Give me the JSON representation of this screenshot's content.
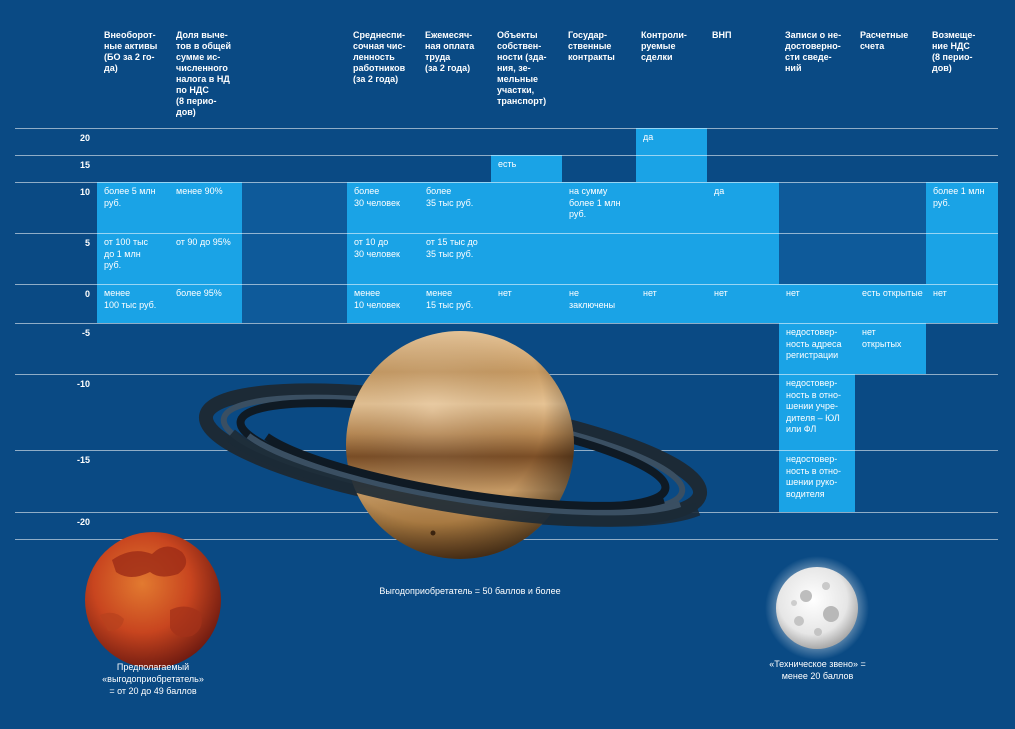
{
  "columns": [
    {
      "id": "bo",
      "label": "Внеоборот-\nные активы\n(БО за 2 го-\nда)"
    },
    {
      "id": "nds_share",
      "label": "Доля выче-\nтов в общей\nсумме ис-\nчисленного\nналога в НД\nпо НДС\n(8 перио-\nдов)"
    },
    {
      "id": "staff",
      "label": "Среднеспи-\nсочная чис-\nленность\nработников\n(за 2 года)"
    },
    {
      "id": "salary",
      "label": "Ежемесяч-\nная оплата\nтруда\n(за 2 года)"
    },
    {
      "id": "property",
      "label": "Объекты\nсобствен-\nности (зда-\nния, зе-\nмельные\nучастки,\nтранспорт)"
    },
    {
      "id": "contracts",
      "label": "Государ-\nственные\nконтракты"
    },
    {
      "id": "controlled",
      "label": "Контроли-\nруемые\nсделки"
    },
    {
      "id": "vnp",
      "label": "ВНП"
    },
    {
      "id": "records",
      "label": "Записи о не-\nдостоверно-\nсти сведе-\nний"
    },
    {
      "id": "accounts",
      "label": "Расчетные\nсчета"
    },
    {
      "id": "refund",
      "label": "Возмеще-\nние НДС\n(8 перио-\nдов)"
    }
  ],
  "scores": [
    "20",
    "15",
    "10",
    "5",
    "0",
    "-5",
    "-10",
    "-15",
    "-20"
  ],
  "cells": {
    "controlled_20": "да",
    "property_15": "есть",
    "bo_10": "более 5 млн\nруб.",
    "nds_10": "менее 90%",
    "staff_10": "более\n30 человек",
    "salary_10": "более\n35 тыс руб.",
    "contracts_10": "на сумму\nболее 1 млн\nруб.",
    "vnp_10": "да",
    "refund_10": "более 1 млн\nруб.",
    "bo_5": "от 100 тыс\nдо 1 млн\nруб.",
    "nds_5": "от 90 до 95%",
    "staff_5": "от 10 до\n30 человек",
    "salary_5": "от 15 тыс до\n35 тыс руб.",
    "bo_0": "менее\n100 тыс руб.",
    "nds_0": "более 95%",
    "staff_0": "менее\n10 человек",
    "salary_0": "менее\n15 тыс руб.",
    "property_0": "нет",
    "contracts_0": "не\nзаключены",
    "controlled_0": "нет",
    "vnp_0": "нет",
    "records_0": "нет",
    "accounts_0": "есть открытые",
    "refund_0": "нет",
    "records_m5": "недостовер-\nность адреса\nрегистрации",
    "accounts_m5": "нет\nоткрытых",
    "records_m10": "недостовер-\nность в отно-\nшении учре-\nдителя – ЮЛ\nили ФЛ",
    "records_m15": "недостовер-\nность в отно-\nшении руко-\nводителя"
  },
  "captions": {
    "mars": "Предполагаемый\n«выгодоприобретатель»\n= от 20 до 49 баллов",
    "saturn": "Выгодоприобретатель = 50 баллов и более",
    "moon": "«Техническое звено» =\nменее 20 баллов"
  }
}
